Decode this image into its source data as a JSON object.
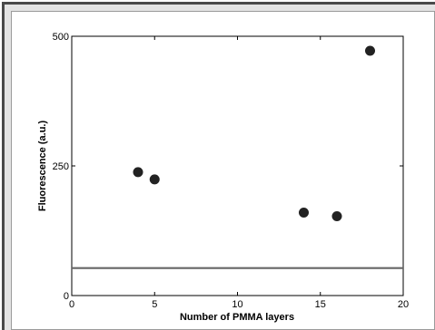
{
  "chart_data": {
    "type": "scatter",
    "title": "",
    "xlabel": "Number of PMMA layers",
    "ylabel": "Fluorescence (a.u.)",
    "xlim": [
      0,
      20
    ],
    "ylim": [
      0,
      500
    ],
    "x_ticks": [
      0,
      5,
      10,
      15,
      20
    ],
    "y_ticks": [
      0,
      250,
      500
    ],
    "grid": false,
    "legend": "none",
    "series": [
      {
        "points": [
          {
            "x": 4,
            "y": 238
          },
          {
            "x": 5,
            "y": 224
          },
          {
            "x": 14,
            "y": 160
          },
          {
            "x": 16,
            "y": 153
          },
          {
            "x": 18,
            "y": 472
          }
        ],
        "color": "#222222"
      }
    ],
    "reference_line": {
      "y": 53,
      "color": "#666666"
    }
  }
}
